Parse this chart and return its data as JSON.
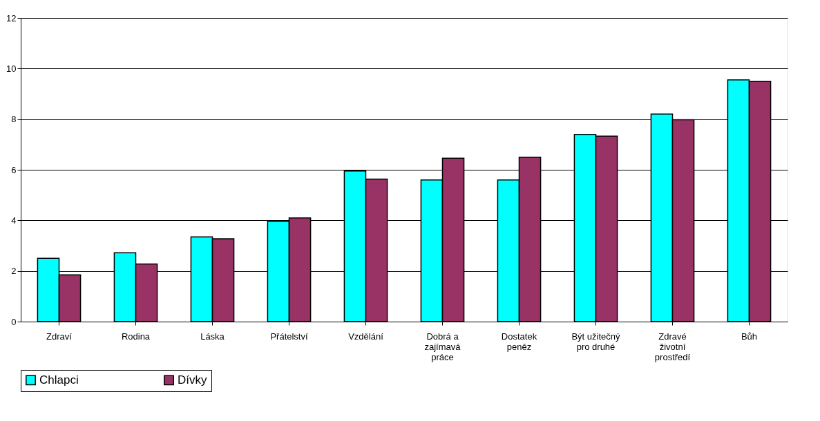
{
  "chart_data": {
    "type": "bar",
    "categories": [
      "Zdraví",
      "Rodina",
      "Láska",
      "Přátelství",
      "Vzdělání",
      "Dobrá a\nzajímavá\npráce",
      "Dostatek\npeněz",
      "Být užitečný\npro druhé",
      "Zdravé\nživotní\nprostředí",
      "Bůh"
    ],
    "series": [
      {
        "name": "Chlapci",
        "color": "#00ffff",
        "values": [
          2.5,
          2.72,
          3.35,
          3.97,
          5.95,
          5.6,
          5.6,
          7.4,
          8.2,
          9.55
        ]
      },
      {
        "name": "Dívky",
        "color": "#993366",
        "values": [
          1.85,
          2.28,
          3.27,
          4.1,
          5.63,
          6.46,
          6.5,
          7.33,
          7.98,
          9.5
        ]
      }
    ],
    "ylim": [
      0,
      12
    ],
    "yticks": [
      0,
      2,
      4,
      6,
      8,
      10,
      12
    ],
    "grid": "y",
    "legend": "bottom"
  }
}
